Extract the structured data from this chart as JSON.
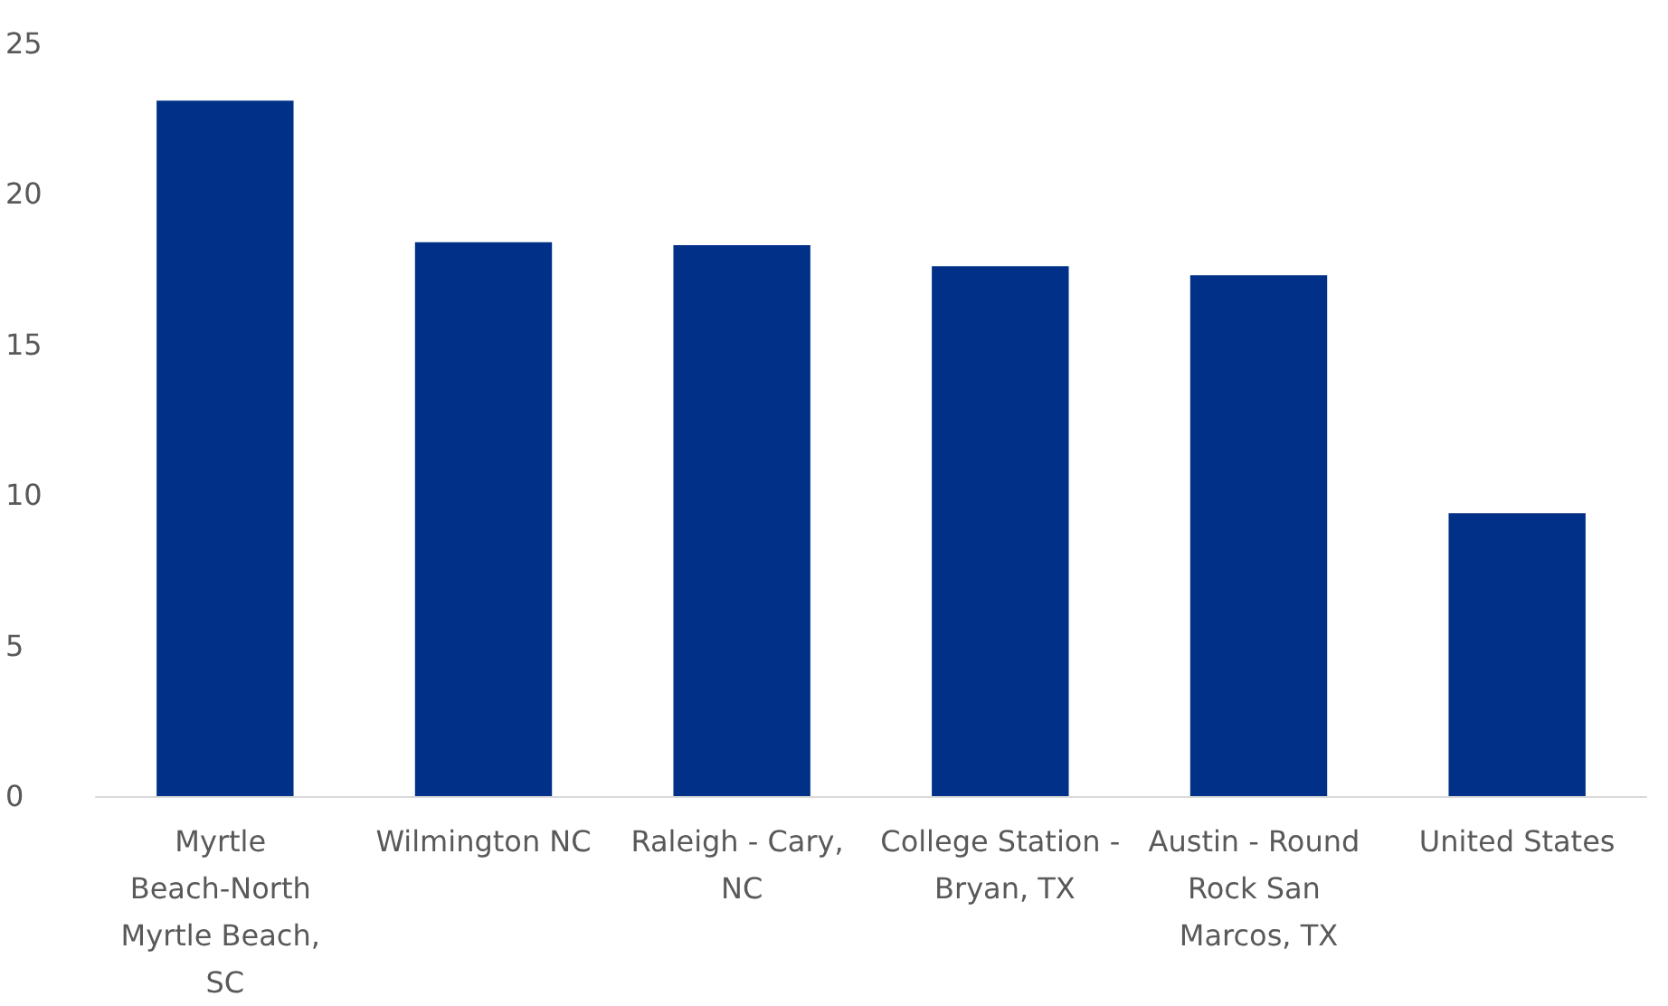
{
  "chart_data": {
    "type": "bar",
    "categories": [
      "Myrtle Beach-North Myrtle Beach, SC",
      "Wilmington NC",
      "Raleigh - Cary, NC",
      "College Station - Bryan, TX",
      "Austin - Round Rock San Marcos, TX",
      "United States"
    ],
    "values": [
      23.1,
      18.4,
      18.3,
      17.6,
      17.3,
      9.4
    ],
    "color": "#003087",
    "ylim": [
      0,
      25
    ],
    "yticks": [
      0,
      5,
      10,
      15,
      20,
      25
    ],
    "grid": false
  }
}
